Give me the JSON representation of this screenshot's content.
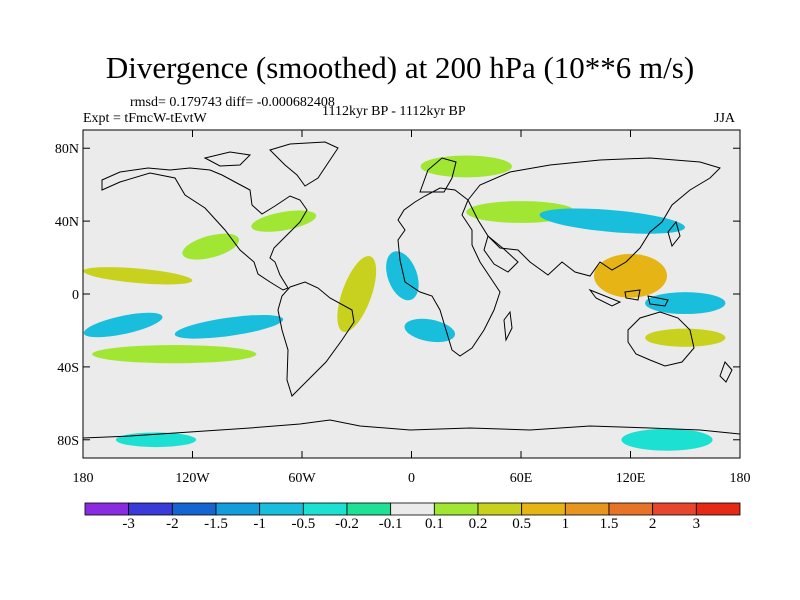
{
  "header": {
    "title": "Divergence (smoothed) at 200 hPa (10**6 m/s)",
    "stats": "rmsd= 0.179743 diff= -0.000682408",
    "experiment": "Expt = tFmcW-tEvtW",
    "period": "1112kyr BP - 1112kyr BP",
    "season": "JJA"
  },
  "map": {
    "projection": "cylindrical equidistant",
    "lon_range": [
      -180,
      180
    ],
    "lat_range": [
      -90,
      90
    ],
    "lat_ticks": [
      {
        "value": 80,
        "label": "80N"
      },
      {
        "value": 40,
        "label": "40N"
      },
      {
        "value": 0,
        "label": "0"
      },
      {
        "value": -40,
        "label": "40S"
      },
      {
        "value": -80,
        "label": "80S"
      }
    ],
    "lon_ticks": [
      {
        "value": -180,
        "label": "180"
      },
      {
        "value": -120,
        "label": "120W"
      },
      {
        "value": -60,
        "label": "60W"
      },
      {
        "value": 0,
        "label": "0"
      },
      {
        "value": 60,
        "label": "60E"
      },
      {
        "value": 120,
        "label": "120E"
      },
      {
        "value": 180,
        "label": "180"
      }
    ],
    "background_color": "#ebebeb"
  },
  "colorbar": {
    "colors": [
      "#8a2be2",
      "#3a3ad8",
      "#1464d2",
      "#149ddc",
      "#19bedc",
      "#1ce1d2",
      "#1ee196",
      "#ebebeb",
      "#a0e632",
      "#c8d21e",
      "#e6b414",
      "#e6961e",
      "#e67328",
      "#e6462d",
      "#e62814"
    ],
    "labels": [
      "-3",
      "-2",
      "-1.5",
      "-1",
      "-0.5",
      "-0.2",
      "-0.1",
      "0.1",
      "0.2",
      "0.5",
      "1",
      "1.5",
      "2",
      "3"
    ]
  },
  "field_blobs": [
    {
      "lon": -158,
      "lat": -17,
      "rx": 22,
      "ry": 5,
      "rot": -12,
      "level": "neg-0.5"
    },
    {
      "lon": -100,
      "lat": -18,
      "rx": 30,
      "ry": 5,
      "rot": -8,
      "level": "neg-0.5"
    },
    {
      "lon": -130,
      "lat": -33,
      "rx": 45,
      "ry": 5,
      "rot": 0,
      "level": "pos-0.2"
    },
    {
      "lon": -150,
      "lat": 10,
      "rx": 30,
      "ry": 4,
      "rot": 5,
      "level": "pos-0.5"
    },
    {
      "lon": -110,
      "lat": 26,
      "rx": 16,
      "ry": 6,
      "rot": -15,
      "level": "pos-0.2"
    },
    {
      "lon": -70,
      "lat": 40,
      "rx": 18,
      "ry": 5,
      "rot": -10,
      "level": "pos-0.2"
    },
    {
      "lon": -30,
      "lat": 0,
      "rx": 8,
      "ry": 22,
      "rot": 20,
      "level": "pos-0.5"
    },
    {
      "lon": -5,
      "lat": 10,
      "rx": 8,
      "ry": 14,
      "rot": -20,
      "level": "neg-0.5"
    },
    {
      "lon": 10,
      "lat": -20,
      "rx": 14,
      "ry": 6,
      "rot": 10,
      "level": "neg-0.5"
    },
    {
      "lon": 60,
      "lat": 45,
      "rx": 30,
      "ry": 6,
      "rot": 0,
      "level": "pos-0.2"
    },
    {
      "lon": 110,
      "lat": 40,
      "rx": 40,
      "ry": 6,
      "rot": 5,
      "level": "neg-0.5"
    },
    {
      "lon": 120,
      "lat": 10,
      "rx": 20,
      "ry": 12,
      "rot": 0,
      "level": "pos-1"
    },
    {
      "lon": 150,
      "lat": -5,
      "rx": 22,
      "ry": 6,
      "rot": 0,
      "level": "neg-0.5"
    },
    {
      "lon": 150,
      "lat": -24,
      "rx": 22,
      "ry": 5,
      "rot": 0,
      "level": "pos-0.5"
    },
    {
      "lon": 140,
      "lat": -80,
      "rx": 25,
      "ry": 6,
      "rot": 0,
      "level": "neg-0.2"
    },
    {
      "lon": -140,
      "lat": -80,
      "rx": 22,
      "ry": 4,
      "rot": 0,
      "level": "neg-0.2"
    },
    {
      "lon": 30,
      "lat": 70,
      "rx": 25,
      "ry": 6,
      "rot": 0,
      "level": "pos-0.2"
    }
  ]
}
